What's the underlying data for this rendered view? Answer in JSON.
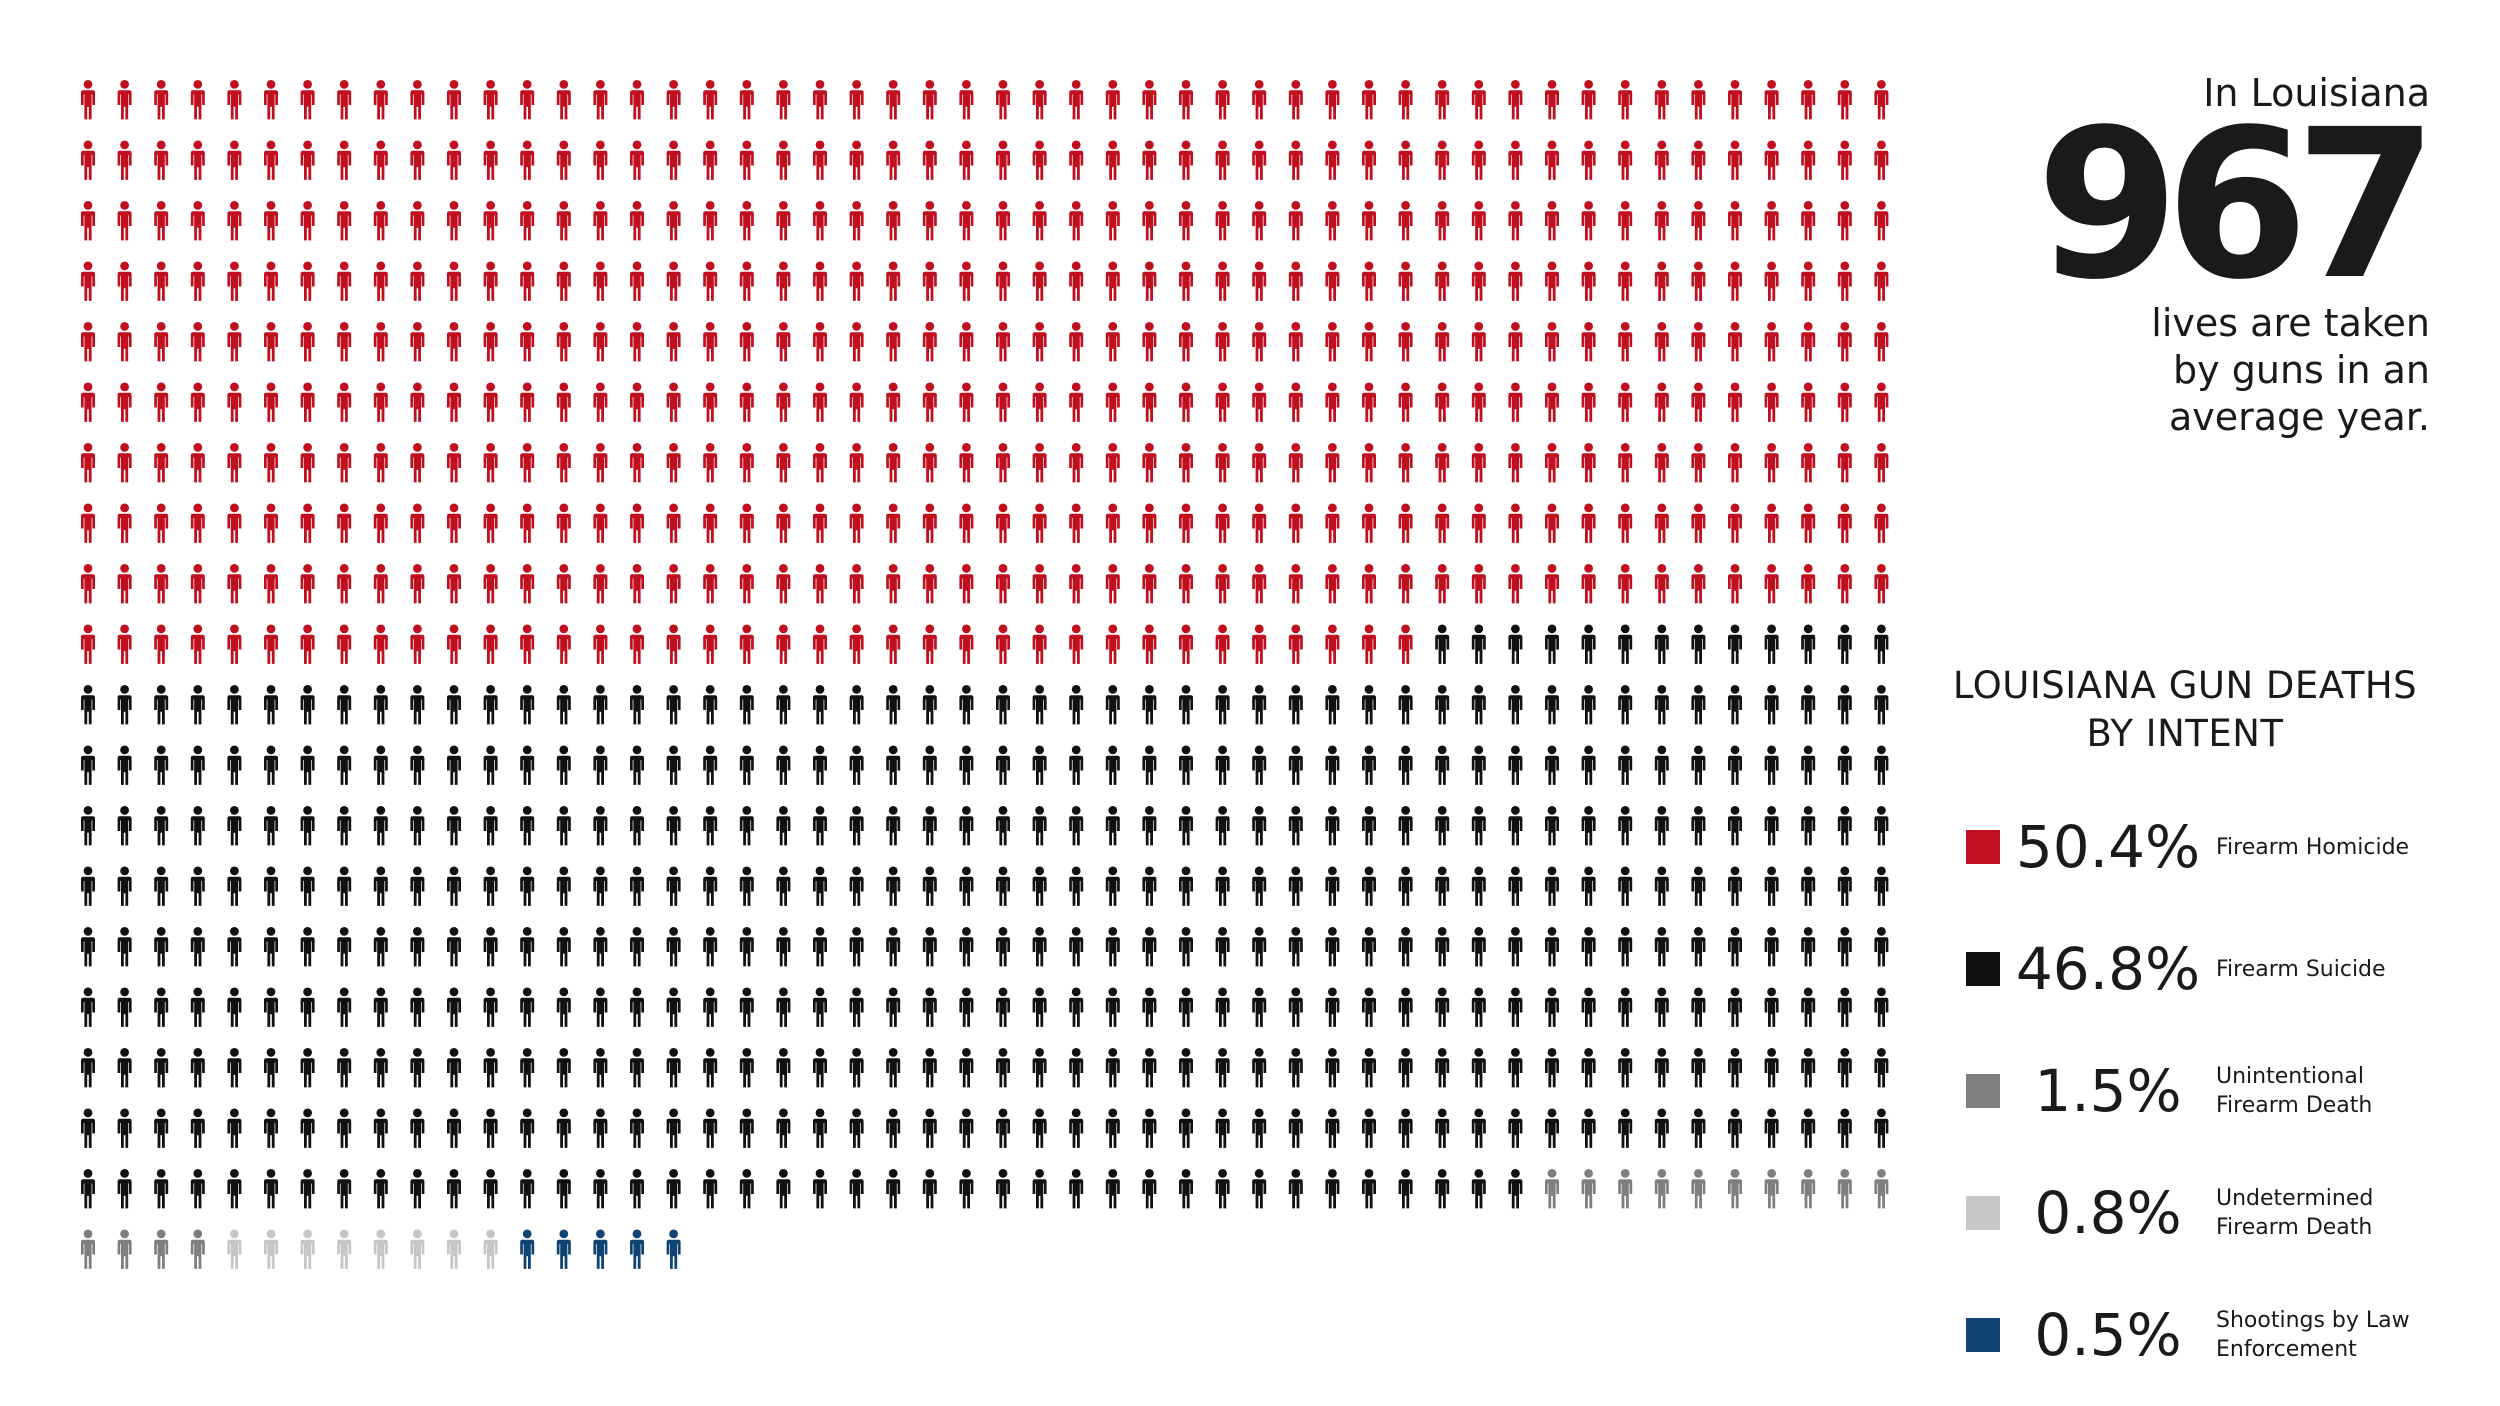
{
  "headline": {
    "pre": "In Louisiana",
    "number": "967",
    "post_lines": [
      "lives are taken",
      "by guns in an",
      "average year."
    ]
  },
  "legend": {
    "title_lines": [
      "LOUISIANA GUN DEATHS",
      "BY INTENT"
    ]
  },
  "chart_data": {
    "type": "pictogram",
    "total": 967,
    "columns": 50,
    "series": [
      {
        "pct": "50.4%",
        "label": "Firearm Homicide",
        "count": 487,
        "color": "#c00f1e"
      },
      {
        "pct": "46.8%",
        "label": "Firearm Suicide",
        "count": 453,
        "color": "#111111"
      },
      {
        "pct": "1.5%",
        "label": "Unintentional Firearm Death",
        "count": 14,
        "color": "#7f7f7f"
      },
      {
        "pct": "0.8%",
        "label": "Undetermined Firearm Death",
        "count": 8,
        "color": "#c6c6c6"
      },
      {
        "pct": "0.5%",
        "label": "Shootings by Law Enforcement",
        "count": 5,
        "color": "#0f4372"
      }
    ]
  }
}
